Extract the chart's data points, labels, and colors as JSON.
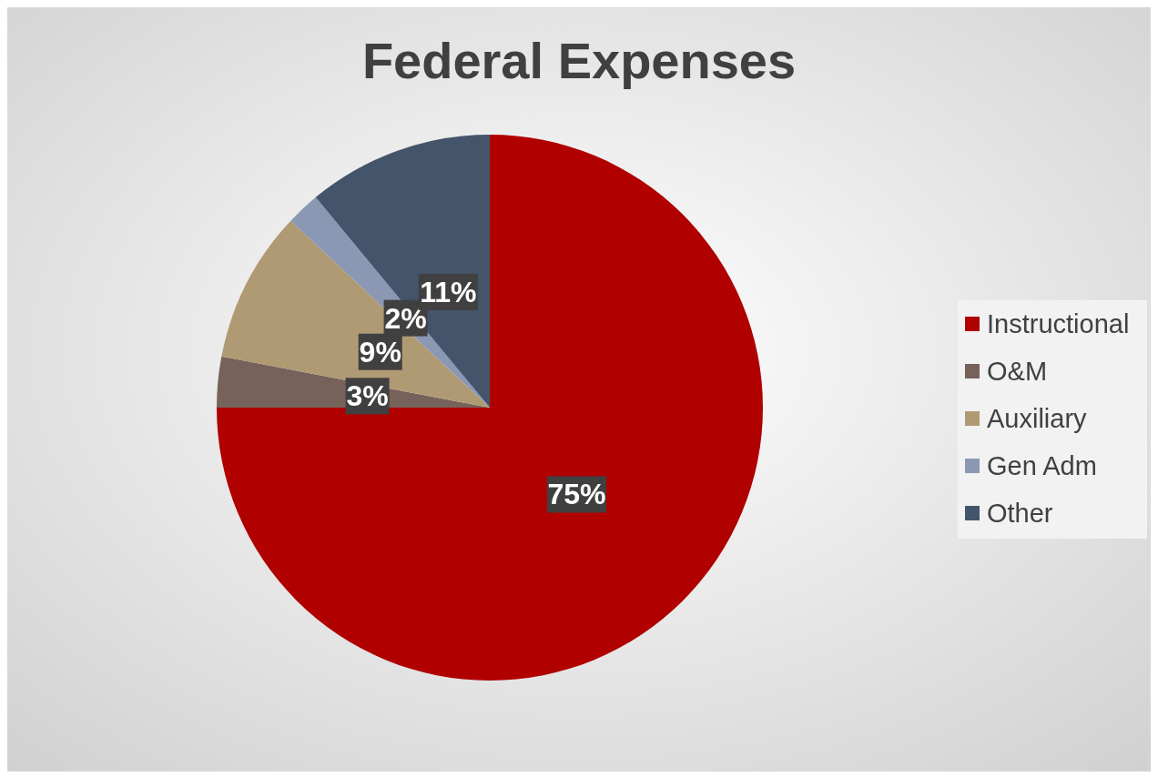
{
  "chart_data": {
    "type": "pie",
    "title": "Federal Expenses",
    "categories": [
      "Instructional",
      "O&M",
      "Auxiliary",
      "Gen Adm",
      "Other"
    ],
    "values": [
      75,
      3,
      9,
      2,
      11
    ],
    "colors": [
      "#b00000",
      "#76625a",
      "#b09a74",
      "#8a98b4",
      "#44546a"
    ],
    "value_labels": [
      "75%",
      "3%",
      "9%",
      "2%",
      "11%"
    ],
    "legend": "right"
  }
}
